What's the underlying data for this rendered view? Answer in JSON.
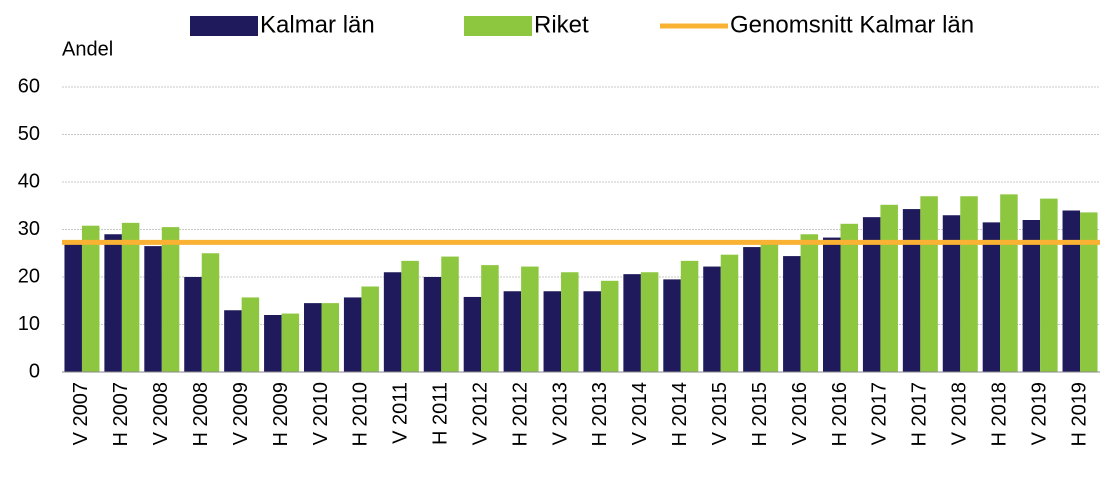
{
  "chart_data": {
    "type": "bar",
    "ylabel": "Andel",
    "categories": [
      "V 2007",
      "H 2007",
      "V 2008",
      "H 2008",
      "V 2009",
      "H 2009",
      "V 2010",
      "H 2010",
      "V 2011",
      "H 2011",
      "V 2012",
      "H 2012",
      "V 2013",
      "H 2013",
      "V 2014",
      "H 2014",
      "V 2015",
      "H 2015",
      "V 2016",
      "H 2016",
      "V 2017",
      "H 2017",
      "V 2018",
      "H 2018",
      "V 2019",
      "H 2019"
    ],
    "series": [
      {
        "name": "Kalmar län",
        "color": "#1f1a5c",
        "values": [
          27.5,
          29,
          26.5,
          20,
          13,
          12,
          14.5,
          15.7,
          21,
          20,
          15.8,
          17,
          17,
          17,
          20.6,
          19.5,
          22.2,
          26.3,
          24.4,
          28.3,
          32.6,
          34.3,
          33,
          31.5,
          32,
          34
        ]
      },
      {
        "name": "Riket",
        "color": "#8dc63f",
        "values": [
          30.8,
          31.4,
          30.5,
          25,
          15.7,
          12.3,
          14.5,
          18,
          23.4,
          24.3,
          22.5,
          22.2,
          21,
          19.2,
          21,
          23.4,
          24.7,
          27.8,
          29,
          31.2,
          35.2,
          37,
          37,
          37.4,
          36.5,
          33.6
        ]
      }
    ],
    "average": {
      "name": "Genomsnitt Kalmar län",
      "color": "#f9b233",
      "value": 27.3
    },
    "ylim": [
      0,
      60
    ],
    "yticks": [
      0,
      10,
      20,
      30,
      40,
      50,
      60
    ],
    "grid": true
  }
}
